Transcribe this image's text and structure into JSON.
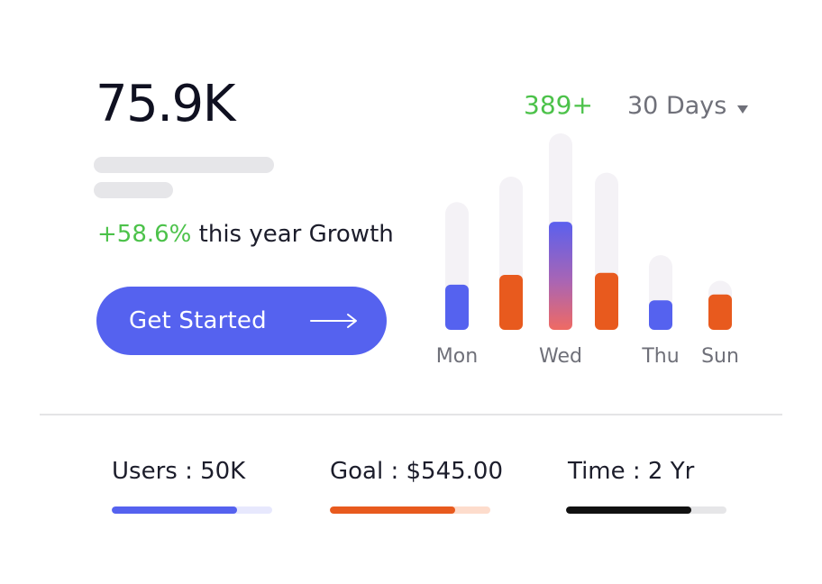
{
  "metric": {
    "value": "75.9K",
    "growth_pct": "+58.6%",
    "growth_text": " this year Growth"
  },
  "cta": {
    "label": "Get Started",
    "icon": "arrow-right-icon"
  },
  "chart_header": {
    "count": "389+",
    "range_label": "30 Days",
    "range_icon": "caret-down-icon"
  },
  "colors": {
    "accent_blue": "#5562ef",
    "accent_orange": "#e85a1e",
    "growth_green": "#4cc24a",
    "track_bg": "#f4f2f6"
  },
  "chart_data": {
    "type": "bar",
    "categories": [
      "Mon",
      "",
      "Wed",
      "",
      "Thu",
      "Sun"
    ],
    "series": [
      {
        "values": [
          0.23,
          0.28,
          0.55,
          0.29,
          0.15,
          0.18
        ]
      }
    ],
    "capacity": [
      0.65,
      0.78,
      1.0,
      0.8,
      0.38,
      0.25
    ],
    "bar_colors": [
      "blue",
      "orange",
      "gradient",
      "orange",
      "blue",
      "orange"
    ],
    "title": "",
    "xlabel": "",
    "ylabel": ""
  },
  "stats": {
    "users": {
      "label": "Users : 50K",
      "progress": 0.78,
      "color": "#5562ef",
      "track": "#e7e8fd"
    },
    "goal": {
      "label": "Goal : $545.00",
      "progress": 0.78,
      "color": "#e85a1e",
      "track": "#fddccc"
    },
    "time": {
      "label": "Time : 2 Yr",
      "progress": 0.78,
      "color": "#111111",
      "track": "#e6e6e8"
    }
  }
}
